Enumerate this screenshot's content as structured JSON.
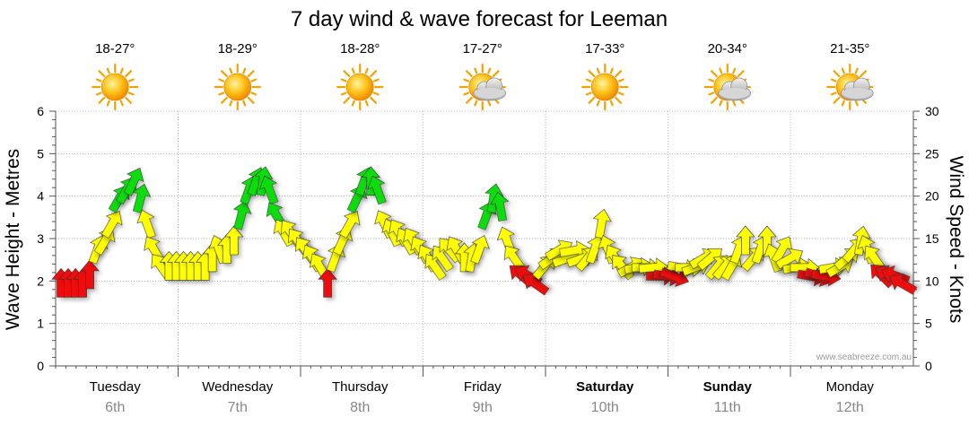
{
  "chart_data": {
    "type": "arrow-forecast",
    "title": "7 day wind & wave forecast for Leeman",
    "ylabel_left": "Wave Height - Metres",
    "ylabel_right": "Wind Speed - Knots",
    "ylim_left": [
      0,
      6
    ],
    "ylim_right": [
      0,
      30
    ],
    "yticks_left": [
      "0",
      "1",
      "2",
      "3",
      "4",
      "5",
      "6"
    ],
    "yticks_right": [
      "0",
      "5",
      "10",
      "15",
      "20",
      "25",
      "30"
    ],
    "watermark": "www.seabreeze.com.au",
    "days": [
      {
        "day": "Tuesday",
        "date": "6th",
        "temp": "18-27°",
        "weather": "sunny",
        "bold": false
      },
      {
        "day": "Wednesday",
        "date": "7th",
        "temp": "18-29°",
        "weather": "sunny",
        "bold": false
      },
      {
        "day": "Thursday",
        "date": "8th",
        "temp": "18-28°",
        "weather": "sunny",
        "bold": false
      },
      {
        "day": "Friday",
        "date": "9th",
        "temp": "17-27°",
        "weather": "partly-cloudy",
        "bold": false
      },
      {
        "day": "Saturday",
        "date": "10th",
        "temp": "17-33°",
        "weather": "sunny",
        "bold": true
      },
      {
        "day": "Sunday",
        "date": "11th",
        "temp": "20-34°",
        "weather": "partly-cloudy",
        "bold": true
      },
      {
        "day": "Monday",
        "date": "12th",
        "temp": "21-35°",
        "weather": "partly-cloudy",
        "bold": false
      }
    ],
    "wind_colors": {
      "light": "#ee1111",
      "moderate": "#ffff00",
      "strong": "#11dd11"
    },
    "wind_series": [
      {
        "t": 0.0,
        "knots": 10,
        "dir": 0,
        "level": "light"
      },
      {
        "t": 0.08,
        "knots": 10,
        "dir": 0,
        "level": "light"
      },
      {
        "t": 0.16,
        "knots": 10,
        "dir": 0,
        "level": "light"
      },
      {
        "t": 0.24,
        "knots": 10,
        "dir": 0,
        "level": "light"
      },
      {
        "t": 0.32,
        "knots": 11,
        "dir": 0,
        "level": "light"
      },
      {
        "t": 0.4,
        "knots": 14,
        "dir": 20,
        "level": "moderate"
      },
      {
        "t": 0.48,
        "knots": 15,
        "dir": 30,
        "level": "moderate"
      },
      {
        "t": 0.56,
        "knots": 17,
        "dir": 30,
        "level": "moderate"
      },
      {
        "t": 0.64,
        "knots": 20,
        "dir": 30,
        "level": "strong"
      },
      {
        "t": 0.72,
        "knots": 21,
        "dir": 30,
        "level": "strong"
      },
      {
        "t": 0.8,
        "knots": 22,
        "dir": 25,
        "level": "strong"
      },
      {
        "t": 0.88,
        "knots": 20,
        "dir": 15,
        "level": "strong"
      },
      {
        "t": 0.96,
        "knots": 17,
        "dir": -20,
        "level": "moderate"
      },
      {
        "t": 1.04,
        "knots": 14,
        "dir": -30,
        "level": "moderate"
      },
      {
        "t": 1.12,
        "knots": 12,
        "dir": -35,
        "level": "moderate"
      },
      {
        "t": 1.2,
        "knots": 12,
        "dir": 0,
        "level": "moderate"
      },
      {
        "t": 1.28,
        "knots": 12,
        "dir": 0,
        "level": "moderate"
      },
      {
        "t": 1.36,
        "knots": 12,
        "dir": 0,
        "level": "moderate"
      },
      {
        "t": 1.44,
        "knots": 12,
        "dir": 0,
        "level": "moderate"
      },
      {
        "t": 1.52,
        "knots": 12,
        "dir": 0,
        "level": "moderate"
      },
      {
        "t": 1.6,
        "knots": 12,
        "dir": 0,
        "level": "moderate"
      },
      {
        "t": 1.68,
        "knots": 13,
        "dir": 0,
        "level": "moderate"
      },
      {
        "t": 1.76,
        "knots": 14,
        "dir": -20,
        "level": "moderate"
      },
      {
        "t": 1.84,
        "knots": 14,
        "dir": 0,
        "level": "moderate"
      },
      {
        "t": 1.92,
        "knots": 15,
        "dir": 0,
        "level": "moderate"
      },
      {
        "t": 2.0,
        "knots": 18,
        "dir": 15,
        "level": "strong"
      },
      {
        "t": 2.08,
        "knots": 21,
        "dir": 20,
        "level": "strong"
      },
      {
        "t": 2.16,
        "knots": 22,
        "dir": 20,
        "level": "strong"
      },
      {
        "t": 2.24,
        "knots": 22,
        "dir": 10,
        "level": "strong"
      },
      {
        "t": 2.32,
        "knots": 21,
        "dir": -20,
        "level": "strong"
      },
      {
        "t": 2.4,
        "knots": 18,
        "dir": -30,
        "level": "strong"
      },
      {
        "t": 2.48,
        "knots": 16,
        "dir": -30,
        "level": "moderate"
      },
      {
        "t": 2.56,
        "knots": 16,
        "dir": -35,
        "level": "moderate"
      },
      {
        "t": 2.64,
        "knots": 15,
        "dir": -35,
        "level": "moderate"
      },
      {
        "t": 2.72,
        "knots": 14,
        "dir": -35,
        "level": "moderate"
      },
      {
        "t": 2.8,
        "knots": 13,
        "dir": -30,
        "level": "moderate"
      },
      {
        "t": 2.88,
        "knots": 12,
        "dir": -30,
        "level": "moderate"
      },
      {
        "t": 2.96,
        "knots": 10,
        "dir": 0,
        "level": "light"
      },
      {
        "t": 3.04,
        "knots": 13,
        "dir": 20,
        "level": "moderate"
      },
      {
        "t": 3.12,
        "knots": 15,
        "dir": 25,
        "level": "moderate"
      },
      {
        "t": 3.2,
        "knots": 17,
        "dir": 30,
        "level": "moderate"
      },
      {
        "t": 3.28,
        "knots": 20,
        "dir": 25,
        "level": "strong"
      },
      {
        "t": 3.36,
        "knots": 22,
        "dir": 20,
        "level": "strong"
      },
      {
        "t": 3.44,
        "knots": 22,
        "dir": 0,
        "level": "strong"
      },
      {
        "t": 3.52,
        "knots": 21,
        "dir": -20,
        "level": "strong"
      },
      {
        "t": 3.6,
        "knots": 17,
        "dir": -25,
        "level": "moderate"
      },
      {
        "t": 3.68,
        "knots": 16,
        "dir": -25,
        "level": "moderate"
      },
      {
        "t": 3.76,
        "knots": 16,
        "dir": -30,
        "level": "moderate"
      },
      {
        "t": 3.84,
        "knots": 15,
        "dir": -30,
        "level": "moderate"
      },
      {
        "t": 3.92,
        "knots": 15,
        "dir": -30,
        "level": "moderate"
      },
      {
        "t": 4.0,
        "knots": 14,
        "dir": -30,
        "level": "moderate"
      },
      {
        "t": 4.08,
        "knots": 13,
        "dir": -30,
        "level": "moderate"
      },
      {
        "t": 4.16,
        "knots": 12,
        "dir": -35,
        "level": "moderate"
      },
      {
        "t": 4.24,
        "knots": 13,
        "dir": -35,
        "level": "moderate"
      },
      {
        "t": 4.32,
        "knots": 14,
        "dir": -40,
        "level": "moderate"
      },
      {
        "t": 4.4,
        "knots": 14,
        "dir": -30,
        "level": "moderate"
      },
      {
        "t": 4.48,
        "knots": 13,
        "dir": 0,
        "level": "moderate"
      },
      {
        "t": 4.56,
        "knots": 13,
        "dir": 10,
        "level": "moderate"
      },
      {
        "t": 4.64,
        "knots": 14,
        "dir": 20,
        "level": "moderate"
      },
      {
        "t": 4.72,
        "knots": 18,
        "dir": 20,
        "level": "strong"
      },
      {
        "t": 4.8,
        "knots": 20,
        "dir": 10,
        "level": "strong"
      },
      {
        "t": 4.88,
        "knots": 19,
        "dir": -10,
        "level": "strong"
      },
      {
        "t": 4.96,
        "knots": 15,
        "dir": -20,
        "level": "moderate"
      },
      {
        "t": 5.04,
        "knots": 13,
        "dir": -35,
        "level": "moderate"
      },
      {
        "t": 5.12,
        "knots": 11,
        "dir": -50,
        "level": "light"
      },
      {
        "t": 5.2,
        "knots": 11,
        "dir": -60,
        "level": "light"
      },
      {
        "t": 5.28,
        "knots": 10,
        "dir": -55,
        "level": "light"
      },
      {
        "t": 5.36,
        "knots": 12,
        "dir": 40,
        "level": "moderate"
      },
      {
        "t": 5.44,
        "knots": 13,
        "dir": 55,
        "level": "moderate"
      },
      {
        "t": 5.52,
        "knots": 14,
        "dir": 60,
        "level": "moderate"
      },
      {
        "t": 5.6,
        "knots": 13,
        "dir": 70,
        "level": "moderate"
      },
      {
        "t": 5.68,
        "knots": 14,
        "dir": 80,
        "level": "moderate"
      },
      {
        "t": 5.76,
        "knots": 13,
        "dir": 70,
        "level": "moderate"
      },
      {
        "t": 5.84,
        "knots": 13,
        "dir": 40,
        "level": "moderate"
      },
      {
        "t": 5.92,
        "knots": 14,
        "dir": 20,
        "level": "moderate"
      },
      {
        "t": 6.0,
        "knots": 17,
        "dir": 10,
        "level": "moderate"
      },
      {
        "t": 6.08,
        "knots": 14,
        "dir": -20,
        "level": "moderate"
      },
      {
        "t": 6.16,
        "knots": 13,
        "dir": -30,
        "level": "moderate"
      },
      {
        "t": 6.24,
        "knots": 12,
        "dir": -40,
        "level": "moderate"
      },
      {
        "t": 6.32,
        "knots": 12,
        "dir": 60,
        "level": "moderate"
      },
      {
        "t": 6.4,
        "knots": 12,
        "dir": 80,
        "level": "moderate"
      },
      {
        "t": 6.48,
        "knots": 12,
        "dir": 90,
        "level": "moderate"
      },
      {
        "t": 6.56,
        "knots": 12,
        "dir": 85,
        "level": "moderate"
      },
      {
        "t": 6.64,
        "knots": 11,
        "dir": 90,
        "level": "light"
      },
      {
        "t": 6.72,
        "knots": 11,
        "dir": 100,
        "level": "light"
      },
      {
        "t": 6.8,
        "knots": 11,
        "dir": 110,
        "level": "light"
      },
      {
        "t": 6.88,
        "knots": 12,
        "dir": 100,
        "level": "moderate"
      },
      {
        "t": 6.96,
        "knots": 12,
        "dir": 90,
        "level": "moderate"
      },
      {
        "t": 7.04,
        "knots": 12,
        "dir": 70,
        "level": "moderate"
      },
      {
        "t": 7.12,
        "knots": 13,
        "dir": 60,
        "level": "moderate"
      },
      {
        "t": 7.2,
        "knots": 13,
        "dir": 50,
        "level": "moderate"
      },
      {
        "t": 7.28,
        "knots": 12,
        "dir": 40,
        "level": "moderate"
      },
      {
        "t": 7.36,
        "knots": 12,
        "dir": 40,
        "level": "moderate"
      },
      {
        "t": 7.44,
        "knots": 12,
        "dir": 30,
        "level": "moderate"
      },
      {
        "t": 7.52,
        "knots": 14,
        "dir": 20,
        "level": "moderate"
      },
      {
        "t": 7.6,
        "knots": 15,
        "dir": 0,
        "level": "moderate"
      },
      {
        "t": 7.68,
        "knots": 13,
        "dir": 40,
        "level": "moderate"
      },
      {
        "t": 7.76,
        "knots": 14,
        "dir": 20,
        "level": "moderate"
      },
      {
        "t": 7.84,
        "knots": 15,
        "dir": 0,
        "level": "moderate"
      },
      {
        "t": 7.92,
        "knots": 13,
        "dir": -20,
        "level": "moderate"
      },
      {
        "t": 8.0,
        "knots": 14,
        "dir": 30,
        "level": "moderate"
      },
      {
        "t": 8.08,
        "knots": 13,
        "dir": 60,
        "level": "moderate"
      },
      {
        "t": 8.16,
        "knots": 12,
        "dir": 80,
        "level": "moderate"
      },
      {
        "t": 8.24,
        "knots": 12,
        "dir": 90,
        "level": "moderate"
      },
      {
        "t": 8.32,
        "knots": 11,
        "dir": 100,
        "level": "light"
      },
      {
        "t": 8.4,
        "knots": 11,
        "dir": 110,
        "level": "light"
      },
      {
        "t": 8.48,
        "knots": 11,
        "dir": 100,
        "level": "light"
      },
      {
        "t": 8.56,
        "knots": 12,
        "dir": 80,
        "level": "moderate"
      },
      {
        "t": 8.64,
        "knots": 12,
        "dir": 60,
        "level": "moderate"
      },
      {
        "t": 8.72,
        "knots": 13,
        "dir": 50,
        "level": "moderate"
      },
      {
        "t": 8.8,
        "knots": 14,
        "dir": 40,
        "level": "moderate"
      },
      {
        "t": 8.88,
        "knots": 15,
        "dir": 10,
        "level": "moderate"
      },
      {
        "t": 8.96,
        "knots": 14,
        "dir": -20,
        "level": "moderate"
      },
      {
        "t": 9.04,
        "knots": 13,
        "dir": -35,
        "level": "moderate"
      },
      {
        "t": 9.12,
        "knots": 11,
        "dir": -45,
        "level": "light"
      },
      {
        "t": 9.2,
        "knots": 11,
        "dir": -60,
        "level": "light"
      },
      {
        "t": 9.28,
        "knots": 11,
        "dir": -70,
        "level": "light"
      },
      {
        "t": 9.36,
        "knots": 10,
        "dir": -60,
        "level": "light"
      },
      {
        "t": 9.44,
        "knots": 9,
        "dir": -60,
        "level": "light"
      }
    ],
    "grid": true
  }
}
